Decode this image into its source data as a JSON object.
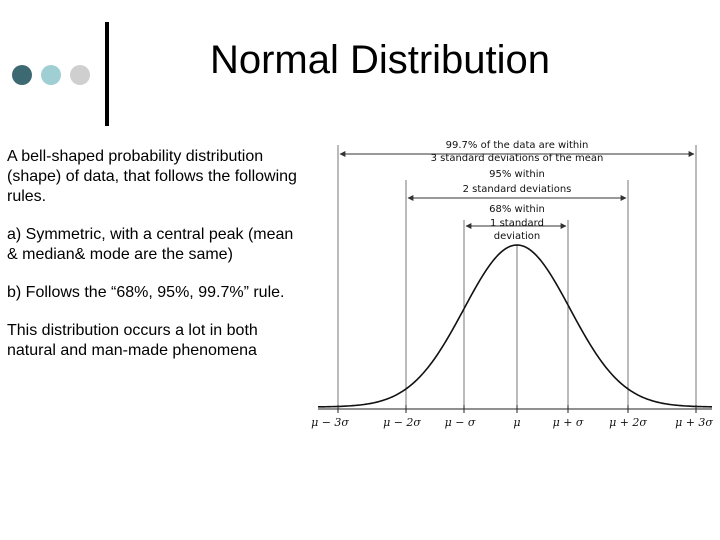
{
  "decor": {
    "dot_colors": [
      "#3d6a72",
      "#9fcfd3",
      "#cfcfcf"
    ]
  },
  "slide": {
    "title": "Normal Distribution",
    "paragraphs": [
      "A bell-shaped probability distribution (shape) of data, that follows the following rules.",
      "a)  Symmetric, with a central peak (mean & median& mode are the same)",
      "b)  Follows the “68%, 95%, 99.7%” rule.",
      "This distribution occurs a lot in both natural and man-made phenomena"
    ]
  },
  "figure": {
    "annotations": {
      "band3_line1": "99.7% of the data are within",
      "band3_line2": "3 standard deviations of the mean",
      "band2_line1": "95% within",
      "band2_line2": "2 standard deviations",
      "band1_line1": "68% within",
      "band1_line2": "1 standard",
      "band1_line3": "deviation"
    },
    "axis_ticks": [
      "μ − 3σ",
      "μ − 2σ",
      "μ − σ",
      "μ",
      "μ + σ",
      "μ + 2σ",
      "μ + 3σ"
    ]
  }
}
